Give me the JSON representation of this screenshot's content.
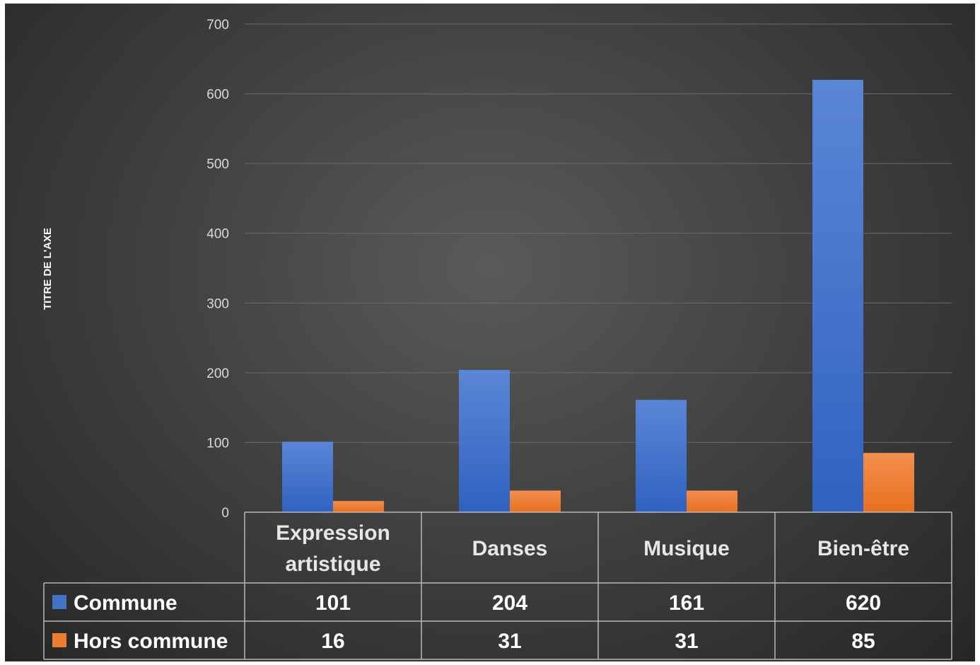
{
  "chart_data": {
    "type": "bar",
    "categories": [
      [
        "Expression",
        "artistique"
      ],
      [
        "Danses"
      ],
      [
        "Musique"
      ],
      [
        "Bien-être"
      ]
    ],
    "series": [
      {
        "name": "Commune",
        "values": [
          101,
          204,
          161,
          620
        ],
        "color": "#4472c4"
      },
      {
        "name": "Hors commune",
        "values": [
          16,
          31,
          31,
          85
        ],
        "color": "#ed7d31"
      }
    ],
    "ylabel": "TITRE DE L'AXE",
    "ylim": [
      0,
      700
    ],
    "yticks": [
      0,
      100,
      200,
      300,
      400,
      500,
      600,
      700
    ],
    "grid": true,
    "data_table": true
  }
}
